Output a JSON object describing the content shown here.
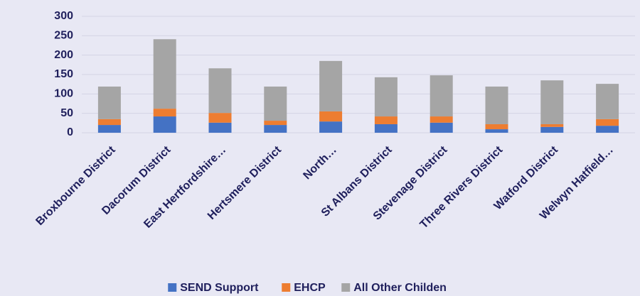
{
  "chart_data": {
    "type": "stacked-bar",
    "categories": [
      "Broxbourne District",
      "Dacorum District",
      "East Hertfordshire…",
      "Hertsmere District",
      "North…",
      "St Albans District",
      "Stevenage District",
      "Three Rivers District",
      "Watford District",
      "Welwyn Hatfield…"
    ],
    "series": [
      {
        "name": "SEND Support",
        "color": "#4472c4",
        "values": [
          20,
          42,
          26,
          20,
          29,
          22,
          26,
          9,
          15,
          18
        ]
      },
      {
        "name": "EHCP",
        "color": "#ed7d31",
        "values": [
          15,
          20,
          25,
          11,
          26,
          20,
          16,
          13,
          7,
          17
        ]
      },
      {
        "name": "All Other Childen",
        "color": "#a5a5a5",
        "values": [
          84,
          179,
          115,
          88,
          130,
          101,
          106,
          97,
          113,
          91
        ]
      }
    ],
    "ylim": [
      0,
      300
    ],
    "yticks": [
      0,
      50,
      100,
      150,
      200,
      250,
      300
    ],
    "grid": true,
    "legend": "bottom"
  }
}
